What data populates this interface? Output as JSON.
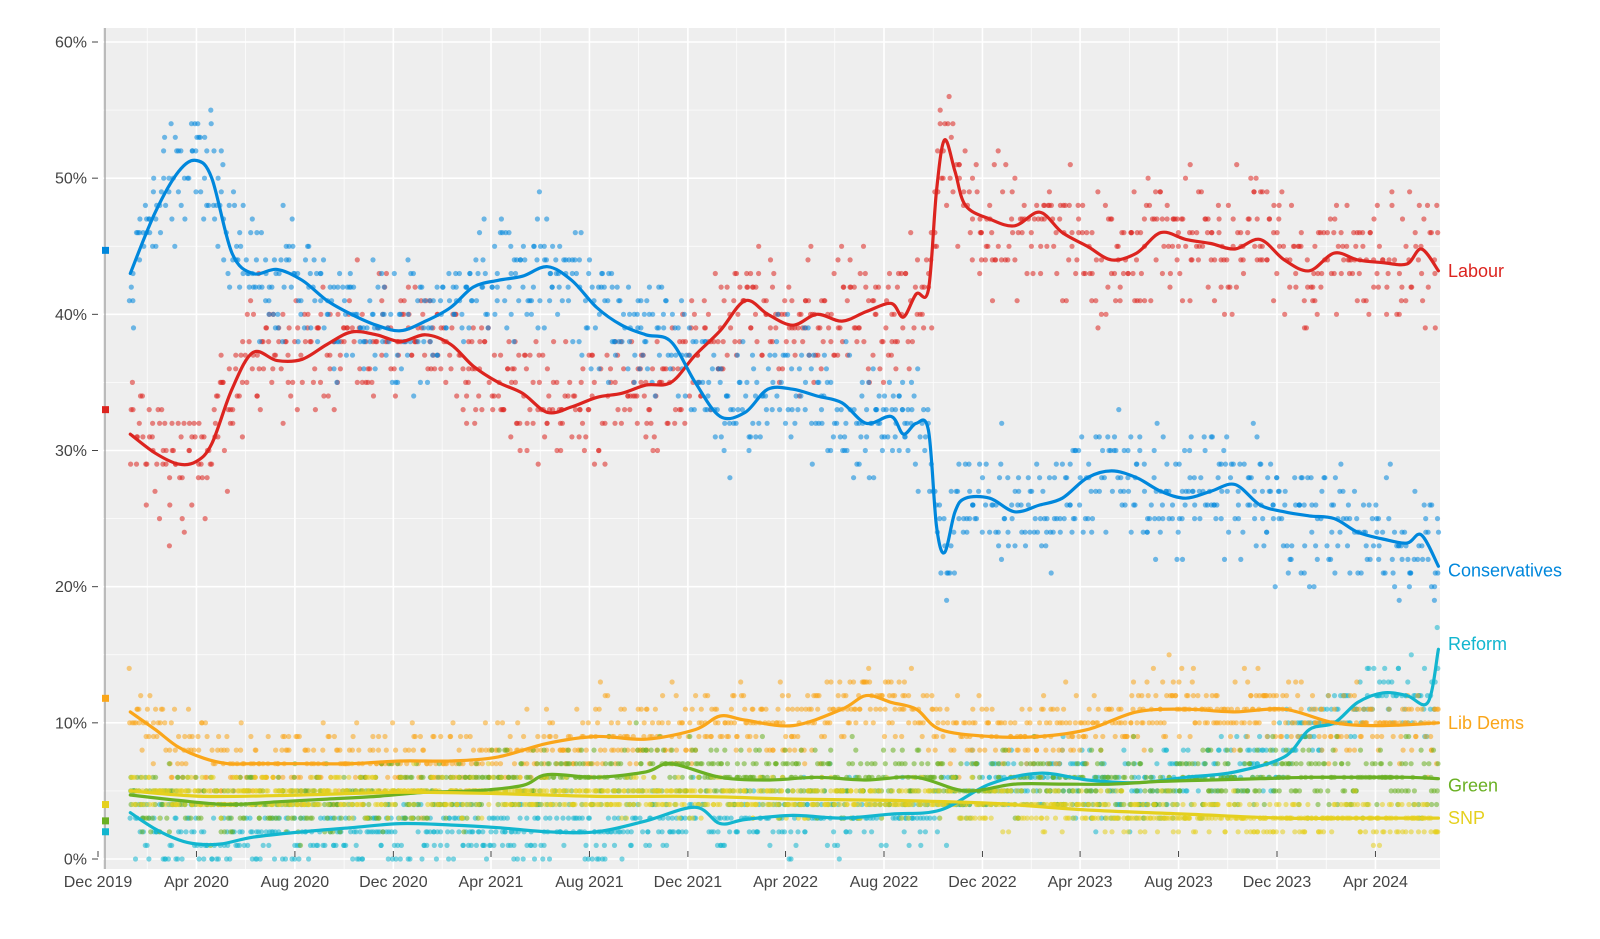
{
  "chart_data": {
    "type": "scatter",
    "title": "",
    "xlabel": "",
    "ylabel": "",
    "x_range": [
      "2019-12-01",
      "2024-06-20"
    ],
    "ylim": [
      0,
      60
    ],
    "grid": true,
    "background": "#eeeeee",
    "legend": "direct labels at right end of lines",
    "y_ticks": [
      {
        "value": 0,
        "label": "0%"
      },
      {
        "value": 10,
        "label": "10%"
      },
      {
        "value": 20,
        "label": "20%"
      },
      {
        "value": 30,
        "label": "30%"
      },
      {
        "value": 40,
        "label": "40%"
      },
      {
        "value": 50,
        "label": "50%"
      },
      {
        "value": 60,
        "label": "60%"
      }
    ],
    "x_ticks": [
      {
        "date": "2019-12-01",
        "label": "Dec 2019"
      },
      {
        "date": "2020-04-01",
        "label": "Apr 2020"
      },
      {
        "date": "2020-08-01",
        "label": "Aug 2020"
      },
      {
        "date": "2020-12-01",
        "label": "Dec 2020"
      },
      {
        "date": "2021-04-01",
        "label": "Apr 2021"
      },
      {
        "date": "2021-08-01",
        "label": "Aug 2021"
      },
      {
        "date": "2021-12-01",
        "label": "Dec 2021"
      },
      {
        "date": "2022-04-01",
        "label": "Apr 2022"
      },
      {
        "date": "2022-08-01",
        "label": "Aug 2022"
      },
      {
        "date": "2022-12-01",
        "label": "Dec 2022"
      },
      {
        "date": "2023-04-01",
        "label": "Apr 2023"
      },
      {
        "date": "2023-08-01",
        "label": "Aug 2023"
      },
      {
        "date": "2023-12-01",
        "label": "Dec 2023"
      },
      {
        "date": "2024-04-01",
        "label": "Apr 2024"
      }
    ],
    "election_2019_result": [
      {
        "party": "Conservatives",
        "value": 44.7
      },
      {
        "party": "Labour",
        "value": 33.0
      },
      {
        "party": "Lib Dems",
        "value": 11.8
      },
      {
        "party": "SNP",
        "value": 4.0
      },
      {
        "party": "Green",
        "value": 2.8
      },
      {
        "party": "Reform",
        "value": 2.0
      }
    ],
    "series": [
      {
        "name": "Labour",
        "color": "#dc241f",
        "spread": 2.3,
        "trend": [
          [
            "2020-01-10",
            31.2
          ],
          [
            "2020-02-10",
            29.8
          ],
          [
            "2020-03-10",
            29.0
          ],
          [
            "2020-04-01",
            29.2
          ],
          [
            "2020-04-20",
            30.5
          ],
          [
            "2020-05-15",
            34.5
          ],
          [
            "2020-06-10",
            37.2
          ],
          [
            "2020-07-10",
            36.6
          ],
          [
            "2020-08-10",
            36.7
          ],
          [
            "2020-09-10",
            37.8
          ],
          [
            "2020-10-10",
            38.7
          ],
          [
            "2020-11-10",
            38.5
          ],
          [
            "2020-12-10",
            38.0
          ],
          [
            "2021-01-10",
            38.5
          ],
          [
            "2021-02-10",
            37.8
          ],
          [
            "2021-03-10",
            36.2
          ],
          [
            "2021-04-10",
            35.0
          ],
          [
            "2021-05-10",
            34.2
          ],
          [
            "2021-06-10",
            32.8
          ],
          [
            "2021-07-10",
            33.2
          ],
          [
            "2021-08-10",
            33.9
          ],
          [
            "2021-09-10",
            34.2
          ],
          [
            "2021-10-10",
            34.8
          ],
          [
            "2021-11-10",
            35.0
          ],
          [
            "2021-12-10",
            37.0
          ],
          [
            "2022-01-10",
            38.8
          ],
          [
            "2022-02-10",
            41.0
          ],
          [
            "2022-03-10",
            40.0
          ],
          [
            "2022-04-10",
            39.2
          ],
          [
            "2022-05-10",
            40.0
          ],
          [
            "2022-06-10",
            39.5
          ],
          [
            "2022-07-10",
            40.2
          ],
          [
            "2022-08-10",
            40.8
          ],
          [
            "2022-08-25",
            39.8
          ],
          [
            "2022-09-10",
            41.5
          ],
          [
            "2022-09-25",
            41.8
          ],
          [
            "2022-10-05",
            49.0
          ],
          [
            "2022-10-15",
            52.8
          ],
          [
            "2022-10-28",
            50.5
          ],
          [
            "2022-11-10",
            48.0
          ],
          [
            "2022-12-10",
            47.0
          ],
          [
            "2023-01-10",
            46.5
          ],
          [
            "2023-02-10",
            47.5
          ],
          [
            "2023-03-10",
            46.0
          ],
          [
            "2023-04-10",
            45.0
          ],
          [
            "2023-05-10",
            44.0
          ],
          [
            "2023-06-10",
            44.5
          ],
          [
            "2023-07-10",
            46.0
          ],
          [
            "2023-08-10",
            45.5
          ],
          [
            "2023-09-10",
            45.2
          ],
          [
            "2023-10-10",
            44.8
          ],
          [
            "2023-11-10",
            45.5
          ],
          [
            "2023-12-10",
            44.0
          ],
          [
            "2024-01-10",
            43.2
          ],
          [
            "2024-02-10",
            44.5
          ],
          [
            "2024-03-10",
            44.0
          ],
          [
            "2024-04-10",
            43.8
          ],
          [
            "2024-05-10",
            43.7
          ],
          [
            "2024-05-28",
            44.8
          ],
          [
            "2024-06-18",
            43.2
          ]
        ]
      },
      {
        "name": "Conservatives",
        "color": "#0087dc",
        "spread": 2.3,
        "trend": [
          [
            "2020-01-10",
            43.0
          ],
          [
            "2020-02-10",
            47.5
          ],
          [
            "2020-03-10",
            50.5
          ],
          [
            "2020-04-01",
            51.3
          ],
          [
            "2020-04-20",
            50.0
          ],
          [
            "2020-05-15",
            44.5
          ],
          [
            "2020-06-10",
            43.0
          ],
          [
            "2020-07-10",
            43.3
          ],
          [
            "2020-08-10",
            42.5
          ],
          [
            "2020-09-10",
            41.0
          ],
          [
            "2020-10-10",
            40.0
          ],
          [
            "2020-11-10",
            39.2
          ],
          [
            "2020-12-10",
            38.8
          ],
          [
            "2021-01-10",
            39.5
          ],
          [
            "2021-02-10",
            40.5
          ],
          [
            "2021-03-10",
            42.0
          ],
          [
            "2021-04-10",
            42.5
          ],
          [
            "2021-05-10",
            42.8
          ],
          [
            "2021-06-10",
            43.5
          ],
          [
            "2021-07-10",
            42.5
          ],
          [
            "2021-08-10",
            40.5
          ],
          [
            "2021-09-10",
            39.2
          ],
          [
            "2021-10-10",
            38.5
          ],
          [
            "2021-11-10",
            38.0
          ],
          [
            "2021-12-10",
            35.0
          ],
          [
            "2022-01-10",
            32.5
          ],
          [
            "2022-02-10",
            32.8
          ],
          [
            "2022-03-10",
            34.5
          ],
          [
            "2022-04-10",
            34.5
          ],
          [
            "2022-05-10",
            34.0
          ],
          [
            "2022-06-10",
            33.5
          ],
          [
            "2022-07-10",
            32.0
          ],
          [
            "2022-08-10",
            32.5
          ],
          [
            "2022-08-25",
            31.2
          ],
          [
            "2022-09-10",
            32.0
          ],
          [
            "2022-09-25",
            31.5
          ],
          [
            "2022-10-05",
            24.5
          ],
          [
            "2022-10-15",
            22.5
          ],
          [
            "2022-10-28",
            25.5
          ],
          [
            "2022-11-10",
            26.5
          ],
          [
            "2022-12-10",
            26.5
          ],
          [
            "2023-01-10",
            25.5
          ],
          [
            "2023-02-10",
            26.0
          ],
          [
            "2023-03-10",
            26.5
          ],
          [
            "2023-04-10",
            28.0
          ],
          [
            "2023-05-10",
            28.5
          ],
          [
            "2023-06-10",
            28.0
          ],
          [
            "2023-07-10",
            27.0
          ],
          [
            "2023-08-10",
            26.5
          ],
          [
            "2023-09-10",
            27.0
          ],
          [
            "2023-10-10",
            27.5
          ],
          [
            "2023-11-10",
            26.0
          ],
          [
            "2023-12-10",
            25.5
          ],
          [
            "2024-01-10",
            25.2
          ],
          [
            "2024-02-10",
            25.0
          ],
          [
            "2024-03-10",
            24.0
          ],
          [
            "2024-04-10",
            23.5
          ],
          [
            "2024-05-10",
            23.2
          ],
          [
            "2024-05-28",
            23.8
          ],
          [
            "2024-06-18",
            21.5
          ]
        ]
      },
      {
        "name": "Reform",
        "color": "#12b6cf",
        "spread": 1.3,
        "trend": [
          [
            "2020-01-10",
            3.4
          ],
          [
            "2020-02-10",
            2.2
          ],
          [
            "2020-03-10",
            1.4
          ],
          [
            "2020-04-01",
            1.1
          ],
          [
            "2020-05-01",
            1.1
          ],
          [
            "2020-06-10",
            1.6
          ],
          [
            "2020-08-10",
            2.0
          ],
          [
            "2020-10-10",
            2.3
          ],
          [
            "2020-12-10",
            2.6
          ],
          [
            "2021-02-10",
            2.5
          ],
          [
            "2021-04-10",
            2.3
          ],
          [
            "2021-06-10",
            2.0
          ],
          [
            "2021-08-10",
            2.0
          ],
          [
            "2021-10-10",
            2.8
          ],
          [
            "2021-12-10",
            3.8
          ],
          [
            "2022-01-10",
            2.6
          ],
          [
            "2022-02-10",
            2.9
          ],
          [
            "2022-04-10",
            3.2
          ],
          [
            "2022-06-10",
            3.0
          ],
          [
            "2022-08-10",
            3.3
          ],
          [
            "2022-10-10",
            3.6
          ],
          [
            "2022-12-10",
            5.5
          ],
          [
            "2023-02-10",
            6.3
          ],
          [
            "2023-04-10",
            5.8
          ],
          [
            "2023-06-10",
            5.6
          ],
          [
            "2023-08-10",
            6.0
          ],
          [
            "2023-10-10",
            6.4
          ],
          [
            "2023-12-10",
            7.5
          ],
          [
            "2024-01-10",
            9.5
          ],
          [
            "2024-02-10",
            10.0
          ],
          [
            "2024-03-10",
            11.5
          ],
          [
            "2024-04-10",
            12.2
          ],
          [
            "2024-05-10",
            12.0
          ],
          [
            "2024-06-05",
            11.5
          ],
          [
            "2024-06-18",
            15.4
          ]
        ]
      },
      {
        "name": "Lib Dems",
        "color": "#faa61a",
        "spread": 1.4,
        "trend": [
          [
            "2020-01-10",
            10.8
          ],
          [
            "2020-02-10",
            9.5
          ],
          [
            "2020-03-10",
            8.2
          ],
          [
            "2020-04-10",
            7.4
          ],
          [
            "2020-05-10",
            7.0
          ],
          [
            "2020-06-10",
            7.0
          ],
          [
            "2020-08-10",
            7.0
          ],
          [
            "2020-10-10",
            7.0
          ],
          [
            "2020-12-10",
            7.2
          ],
          [
            "2021-02-10",
            7.2
          ],
          [
            "2021-04-10",
            7.5
          ],
          [
            "2021-06-10",
            8.5
          ],
          [
            "2021-08-10",
            9.0
          ],
          [
            "2021-10-10",
            8.8
          ],
          [
            "2021-12-10",
            9.5
          ],
          [
            "2022-01-10",
            10.5
          ],
          [
            "2022-02-10",
            10.2
          ],
          [
            "2022-04-10",
            9.8
          ],
          [
            "2022-06-10",
            11.0
          ],
          [
            "2022-07-10",
            12.0
          ],
          [
            "2022-08-10",
            11.5
          ],
          [
            "2022-09-10",
            11.0
          ],
          [
            "2022-10-10",
            9.5
          ],
          [
            "2022-12-10",
            9.0
          ],
          [
            "2023-02-10",
            9.0
          ],
          [
            "2023-04-10",
            9.5
          ],
          [
            "2023-06-10",
            10.8
          ],
          [
            "2023-08-10",
            11.0
          ],
          [
            "2023-10-10",
            10.8
          ],
          [
            "2023-12-10",
            11.0
          ],
          [
            "2024-02-10",
            10.0
          ],
          [
            "2024-04-10",
            9.8
          ],
          [
            "2024-06-18",
            10.0
          ]
        ]
      },
      {
        "name": "Green",
        "color": "#6ab023",
        "spread": 1.2,
        "trend": [
          [
            "2020-01-10",
            4.7
          ],
          [
            "2020-03-10",
            4.3
          ],
          [
            "2020-05-10",
            4.0
          ],
          [
            "2020-07-10",
            4.2
          ],
          [
            "2020-09-10",
            4.4
          ],
          [
            "2020-11-10",
            4.6
          ],
          [
            "2021-01-10",
            4.9
          ],
          [
            "2021-03-10",
            5.0
          ],
          [
            "2021-05-10",
            5.4
          ],
          [
            "2021-06-10",
            6.2
          ],
          [
            "2021-08-10",
            6.0
          ],
          [
            "2021-10-10",
            6.4
          ],
          [
            "2021-11-10",
            7.0
          ],
          [
            "2022-01-10",
            6.0
          ],
          [
            "2022-03-10",
            5.8
          ],
          [
            "2022-05-10",
            6.0
          ],
          [
            "2022-07-10",
            5.8
          ],
          [
            "2022-09-10",
            6.0
          ],
          [
            "2022-11-10",
            5.0
          ],
          [
            "2023-01-10",
            5.5
          ],
          [
            "2023-03-10",
            5.5
          ],
          [
            "2023-05-10",
            5.5
          ],
          [
            "2023-07-10",
            5.7
          ],
          [
            "2023-09-10",
            5.8
          ],
          [
            "2023-11-10",
            5.9
          ],
          [
            "2024-01-10",
            6.0
          ],
          [
            "2024-03-10",
            6.0
          ],
          [
            "2024-05-10",
            6.0
          ],
          [
            "2024-06-18",
            5.9
          ]
        ]
      },
      {
        "name": "SNP",
        "color": "#e5d01e",
        "spread": 0.7,
        "trend": [
          [
            "2020-01-10",
            5.0
          ],
          [
            "2020-04-10",
            4.6
          ],
          [
            "2020-08-10",
            4.7
          ],
          [
            "2020-12-10",
            4.9
          ],
          [
            "2021-04-10",
            4.8
          ],
          [
            "2021-08-10",
            4.6
          ],
          [
            "2021-12-10",
            4.6
          ],
          [
            "2022-04-10",
            4.4
          ],
          [
            "2022-08-10",
            4.3
          ],
          [
            "2022-12-10",
            4.1
          ],
          [
            "2023-04-10",
            3.6
          ],
          [
            "2023-08-10",
            3.3
          ],
          [
            "2023-12-10",
            3.0
          ],
          [
            "2024-03-10",
            3.0
          ],
          [
            "2024-06-18",
            3.0
          ]
        ]
      }
    ]
  }
}
